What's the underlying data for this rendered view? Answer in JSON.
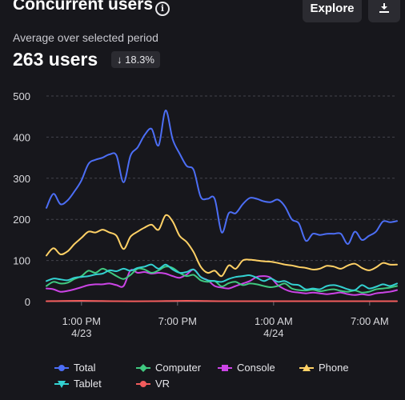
{
  "header": {
    "title": "Concurrent users",
    "info_icon": "info-icon",
    "explore_label": "Explore",
    "download_icon": "download-icon"
  },
  "summary": {
    "subtitle": "Average over selected period",
    "value": "263 users",
    "delta": "↓ 18.3%"
  },
  "chart_data": {
    "type": "line",
    "ylim": [
      0,
      500
    ],
    "yticks": [
      0,
      100,
      200,
      300,
      400,
      500
    ],
    "xlim": [
      0,
      100
    ],
    "xticks": [
      {
        "x": 10,
        "line1": "1:00 PM",
        "line2": "4/23"
      },
      {
        "x": 37.4,
        "line1": "7:00 PM",
        "line2": ""
      },
      {
        "x": 64.8,
        "line1": "1:00 AM",
        "line2": "4/24"
      },
      {
        "x": 92.2,
        "line1": "7:00 AM",
        "line2": ""
      }
    ],
    "grid": true,
    "legend_position": "bottom",
    "series": [
      {
        "name": "Total",
        "color": "#4c6ef5",
        "marker": "circle",
        "x": [
          0,
          2,
          4,
          6,
          8,
          10,
          12,
          14,
          16,
          18,
          20,
          22,
          24,
          26,
          28,
          30,
          32,
          34,
          36,
          38,
          40,
          42,
          44,
          46,
          48,
          50,
          52,
          54,
          56,
          58,
          60,
          62,
          64,
          66,
          68,
          70,
          72,
          74,
          76,
          78,
          80,
          82,
          84,
          86,
          88,
          90,
          92,
          94,
          96,
          98,
          100
        ],
        "y": [
          228,
          262,
          237,
          246,
          268,
          295,
          335,
          345,
          350,
          358,
          355,
          290,
          355,
          375,
          405,
          420,
          380,
          465,
          395,
          360,
          330,
          320,
          255,
          250,
          250,
          168,
          215,
          215,
          237,
          252,
          250,
          244,
          242,
          248,
          232,
          200,
          190,
          148,
          165,
          162,
          165,
          165,
          165,
          140,
          170,
          150,
          160,
          170,
          195,
          193,
          196
        ]
      },
      {
        "name": "Phone",
        "color": "#ffd166",
        "marker": "triangle",
        "x": [
          0,
          2,
          4,
          6,
          8,
          10,
          12,
          14,
          16,
          18,
          20,
          22,
          24,
          26,
          28,
          30,
          32,
          34,
          36,
          38,
          40,
          42,
          44,
          46,
          48,
          50,
          52,
          54,
          56,
          58,
          60,
          62,
          64,
          66,
          68,
          70,
          72,
          74,
          76,
          78,
          80,
          82,
          84,
          86,
          88,
          90,
          92,
          94,
          96,
          98,
          100
        ],
        "y": [
          112,
          130,
          115,
          122,
          140,
          155,
          170,
          168,
          175,
          168,
          160,
          128,
          158,
          170,
          180,
          187,
          175,
          210,
          195,
          160,
          145,
          120,
          85,
          70,
          75,
          62,
          88,
          80,
          100,
          102,
          100,
          98,
          97,
          94,
          90,
          88,
          84,
          82,
          78,
          80,
          87,
          85,
          80,
          88,
          92,
          82,
          76,
          83,
          94,
          90,
          90
        ]
      },
      {
        "name": "Computer",
        "color": "#40c980",
        "marker": "diamond",
        "x": [
          0,
          2,
          4,
          6,
          8,
          10,
          12,
          14,
          16,
          18,
          20,
          22,
          24,
          26,
          28,
          30,
          32,
          34,
          36,
          38,
          40,
          42,
          44,
          46,
          48,
          50,
          52,
          54,
          56,
          58,
          60,
          62,
          64,
          66,
          68,
          70,
          72,
          74,
          76,
          78,
          80,
          82,
          84,
          86,
          88,
          90,
          92,
          94,
          96,
          98,
          100
        ],
        "y": [
          38,
          48,
          44,
          46,
          55,
          62,
          75,
          70,
          80,
          72,
          62,
          55,
          65,
          80,
          78,
          70,
          76,
          85,
          82,
          70,
          62,
          65,
          52,
          48,
          50,
          37,
          45,
          48,
          40,
          44,
          42,
          38,
          35,
          38,
          44,
          32,
          28,
          27,
          29,
          25,
          28,
          30,
          26,
          24,
          27,
          22,
          24,
          30,
          32,
          34,
          38
        ]
      },
      {
        "name": "Tablet",
        "color": "#33d1d1",
        "marker": "triangle-down",
        "x": [
          0,
          2,
          4,
          6,
          8,
          10,
          12,
          14,
          16,
          18,
          20,
          22,
          24,
          26,
          28,
          30,
          32,
          34,
          36,
          38,
          40,
          42,
          44,
          46,
          48,
          50,
          52,
          54,
          56,
          58,
          60,
          62,
          64,
          66,
          68,
          70,
          72,
          74,
          76,
          78,
          80,
          82,
          84,
          86,
          88,
          90,
          92,
          94,
          96,
          98,
          100
        ],
        "y": [
          50,
          56,
          54,
          52,
          58,
          60,
          62,
          66,
          68,
          76,
          74,
          80,
          75,
          82,
          85,
          90,
          80,
          90,
          78,
          70,
          72,
          78,
          60,
          52,
          50,
          48,
          55,
          60,
          62,
          64,
          58,
          50,
          56,
          48,
          50,
          42,
          40,
          30,
          32,
          30,
          38,
          40,
          36,
          30,
          28,
          40,
          32,
          36,
          42,
          38,
          44
        ]
      },
      {
        "name": "Console",
        "color": "#cc44e6",
        "marker": "square",
        "x": [
          0,
          2,
          4,
          6,
          8,
          10,
          12,
          14,
          16,
          18,
          20,
          22,
          24,
          26,
          28,
          30,
          32,
          34,
          36,
          38,
          40,
          42,
          44,
          46,
          48,
          50,
          52,
          54,
          56,
          58,
          60,
          62,
          64,
          66,
          68,
          70,
          72,
          74,
          76,
          78,
          80,
          82,
          84,
          86,
          88,
          90,
          92,
          94,
          96,
          98,
          100
        ],
        "y": [
          32,
          30,
          24,
          26,
          30,
          35,
          40,
          42,
          42,
          44,
          40,
          38,
          76,
          70,
          72,
          68,
          70,
          68,
          62,
          58,
          66,
          78,
          60,
          52,
          38,
          34,
          32,
          38,
          44,
          50,
          60,
          62,
          58,
          40,
          30,
          24,
          22,
          20,
          22,
          20,
          18,
          20,
          22,
          18,
          16,
          18,
          16,
          20,
          22,
          24,
          28
        ]
      },
      {
        "name": "VR",
        "color": "#f25c5c",
        "marker": "circle",
        "x": [
          0,
          10,
          20,
          30,
          40,
          50,
          60,
          70,
          80,
          90,
          100
        ],
        "y": [
          1,
          2,
          1,
          1,
          2,
          1,
          1,
          1,
          1,
          1,
          1
        ]
      }
    ]
  }
}
